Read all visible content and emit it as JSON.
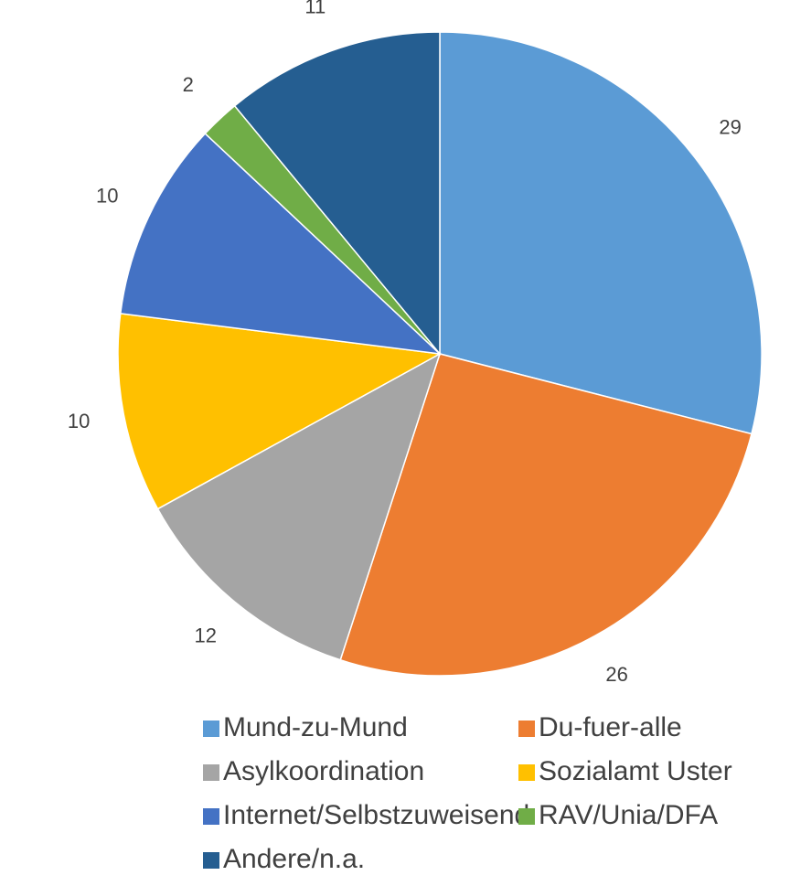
{
  "chart_data": {
    "type": "pie",
    "categories": [
      "Mund-zu-Mund",
      "Du-fuer-alle",
      "Asylkoordination",
      "Sozialamt Uster",
      "Internet/Selbstzuweisend",
      "RAV/Unia/DFA",
      "Andere/n.a."
    ],
    "values": [
      29,
      26,
      12,
      10,
      10,
      2,
      11
    ],
    "colors": [
      "#5b9bd5",
      "#ed7d31",
      "#a5a5a5",
      "#ffc000",
      "#4472c4",
      "#70ad47",
      "#255e91"
    ],
    "legend": "bottom"
  }
}
